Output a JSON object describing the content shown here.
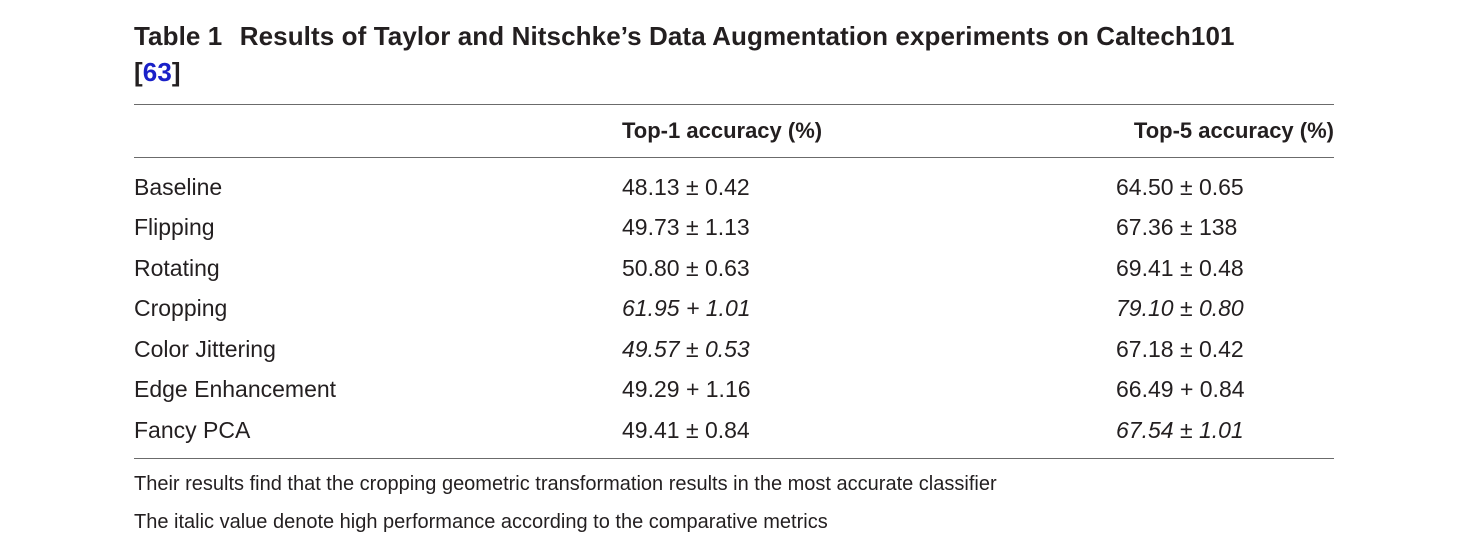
{
  "caption": {
    "label": "Table 1",
    "title": "Results of Taylor and Nitschke’s Data Augmentation experiments on Caltech101",
    "ref_open": "[",
    "ref": "63",
    "ref_close": "]"
  },
  "table": {
    "columns": [
      "",
      "Top-1 accuracy (%)",
      "Top-5 accuracy (%)"
    ],
    "rows": [
      {
        "name": "Baseline",
        "top1": "48.13 ± 0.42",
        "top1_italic": false,
        "top5": "64.50 ± 0.65",
        "top5_italic": false
      },
      {
        "name": "Flipping",
        "top1": "49.73 ± 1.13",
        "top1_italic": false,
        "top5": "67.36 ± 138",
        "top5_italic": false
      },
      {
        "name": "Rotating",
        "top1": "50.80 ± 0.63",
        "top1_italic": false,
        "top5": "69.41 ± 0.48",
        "top5_italic": false
      },
      {
        "name": "Cropping",
        "top1": "61.95 + 1.01",
        "top1_italic": true,
        "top5": "79.10 ± 0.80",
        "top5_italic": true
      },
      {
        "name": "Color Jittering",
        "top1": "49.57 ± 0.53",
        "top1_italic": true,
        "top5": "67.18 ± 0.42",
        "top5_italic": false
      },
      {
        "name": "Edge Enhancement",
        "top1": "49.29 + 1.16",
        "top1_italic": false,
        "top5": "66.49 + 0.84",
        "top5_italic": false
      },
      {
        "name": "Fancy PCA",
        "top1": "49.41 ± 0.84",
        "top1_italic": false,
        "top5": "67.54 ± 1.01",
        "top5_italic": true
      }
    ]
  },
  "notes": [
    "Their results find that the cropping geometric transformation results in the most accurate classifier",
    "The italic value denote high performance according to the comparative metrics"
  ],
  "colors": {
    "text": "#231f20",
    "link": "#1a21c8",
    "rule": "#6b6b6b"
  }
}
